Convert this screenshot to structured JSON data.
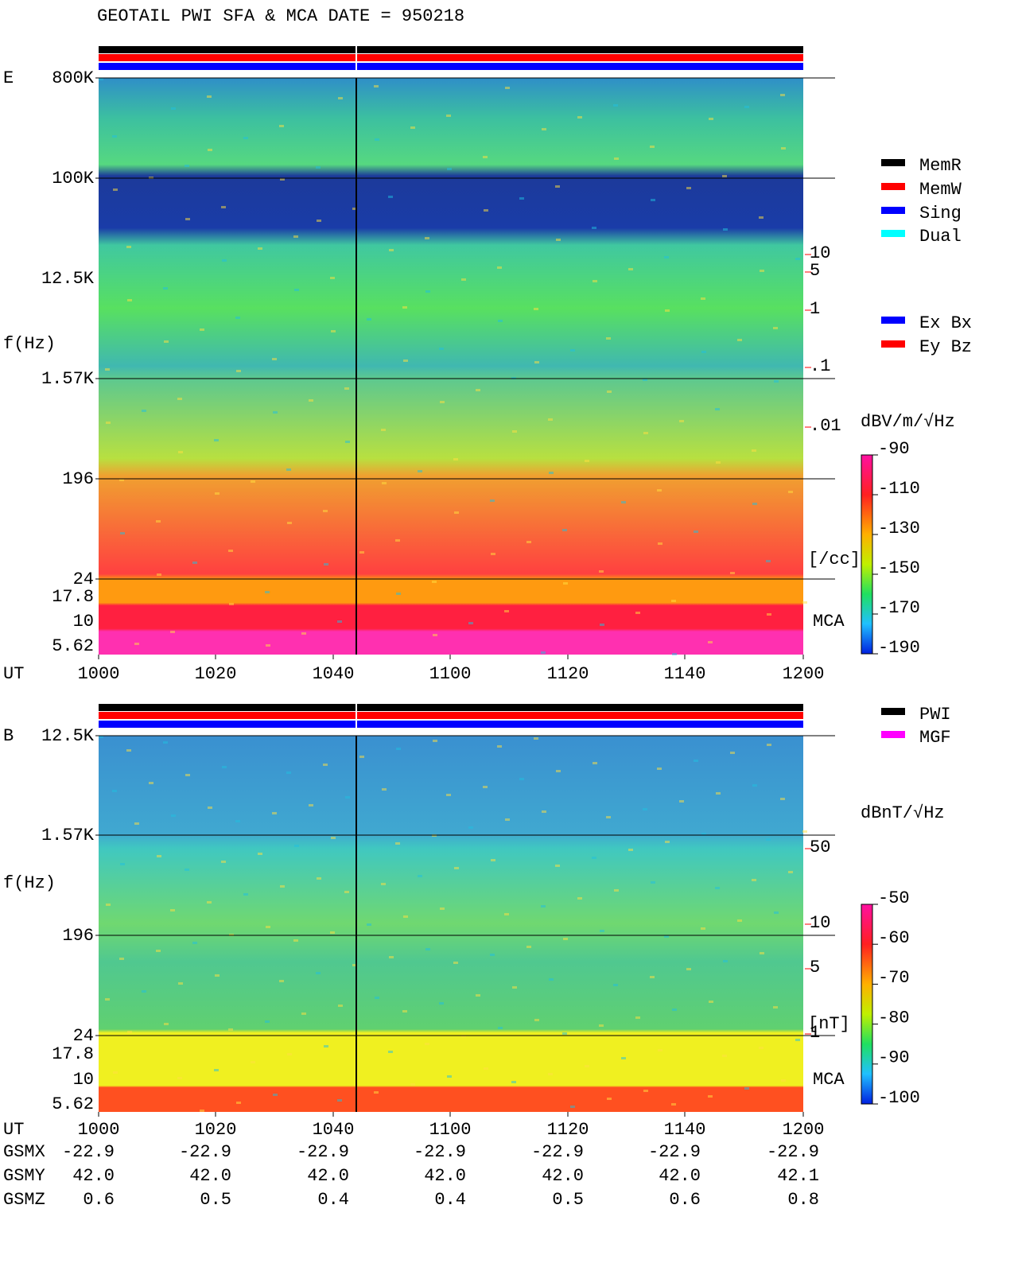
{
  "title": "GEOTAIL  PWI SFA & MCA   DATE = 950218",
  "panels": [
    {
      "label": "E",
      "y_label": "f(Hz)",
      "freq_ticks": [
        "800K",
        "100K",
        "12.5K",
        "1.57K",
        "196",
        "24",
        "17.8",
        "10",
        "5.62"
      ],
      "ut_label": "UT",
      "time_ticks": [
        "1000",
        "1020",
        "1040",
        "1100",
        "1120",
        "1140",
        "1200"
      ],
      "legend": [
        {
          "name": "MemR",
          "color": "#000000"
        },
        {
          "name": "MemW",
          "color": "#ff0000"
        },
        {
          "name": "Sing",
          "color": "#0000ff"
        },
        {
          "name": "Dual",
          "color": "#00ffff"
        }
      ],
      "component_legend": [
        {
          "name": "Ex Bx",
          "color": "#0000ff"
        },
        {
          "name": "Ey Bz",
          "color": "#ff0000"
        }
      ],
      "unit": "dBV/m/√Hz",
      "colorbar_ticks": [
        "-90",
        "-110",
        "-130",
        "-150",
        "-170",
        "-190"
      ],
      "red_ticks": [
        "10",
        "5",
        "1",
        ".1",
        ".01"
      ],
      "red_unit": "[/cc]",
      "mca_label": "MCA"
    },
    {
      "label": "B",
      "y_label": "f(Hz)",
      "freq_ticks": [
        "12.5K",
        "1.57K",
        "196",
        "24",
        "17.8",
        "10",
        "5.62"
      ],
      "ut_label": "UT",
      "time_ticks": [
        "1000",
        "1020",
        "1040",
        "1100",
        "1120",
        "1140",
        "1200"
      ],
      "legend": [
        {
          "name": "PWI",
          "color": "#000000"
        },
        {
          "name": "MGF",
          "color": "#ff00ff"
        }
      ],
      "unit": "dBnT/√Hz",
      "colorbar_ticks": [
        "-50",
        "-60",
        "-70",
        "-80",
        "-90",
        "-100"
      ],
      "red_ticks": [
        "50",
        "10",
        "5",
        "1"
      ],
      "red_unit": "[nT]",
      "mca_label": "MCA"
    }
  ],
  "ephemeris": [
    {
      "label": "GSMX",
      "values": [
        "-22.9",
        "-22.9",
        "-22.9",
        "-22.9",
        "-22.9",
        "-22.9",
        "-22.9"
      ]
    },
    {
      "label": "GSMY",
      "values": [
        "42.0",
        "42.0",
        "42.0",
        "42.0",
        "42.0",
        "42.0",
        "42.1"
      ]
    },
    {
      "label": "GSMZ",
      "values": [
        "0.6",
        "0.5",
        "0.4",
        "0.4",
        "0.5",
        "0.6",
        "0.8"
      ]
    }
  ]
}
